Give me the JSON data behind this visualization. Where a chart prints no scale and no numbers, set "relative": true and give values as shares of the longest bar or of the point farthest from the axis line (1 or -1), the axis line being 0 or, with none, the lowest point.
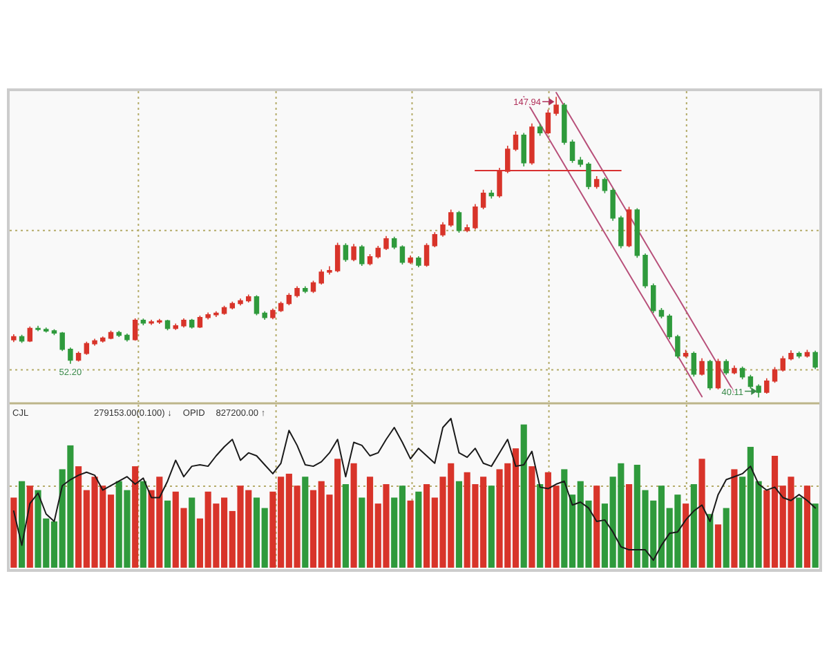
{
  "chart_data": [
    {
      "type": "candlestick",
      "categories": [
        null,
        null,
        null,
        null,
        null,
        null,
        null,
        null,
        null,
        null,
        null,
        null,
        null,
        null,
        null,
        null,
        null,
        null,
        null,
        null,
        null,
        null,
        null,
        null,
        null,
        null,
        null,
        null,
        null,
        null,
        null,
        null,
        null,
        null,
        null,
        null,
        null,
        null,
        null,
        null,
        null,
        null,
        null,
        null,
        null,
        null,
        null,
        null,
        null,
        null,
        null,
        null,
        null,
        null,
        null,
        null,
        null,
        null,
        null,
        null,
        null,
        null,
        null,
        null,
        null,
        null,
        null,
        null,
        null,
        null,
        null,
        null,
        null,
        null,
        null,
        null,
        null,
        null,
        null,
        null,
        null,
        null,
        null,
        null,
        null,
        null,
        null,
        null,
        null,
        null,
        null,
        null,
        null,
        null,
        null,
        null,
        null,
        null,
        null,
        null
      ],
      "ohlc": [
        [
          60.8,
          62.8,
          60.0,
          61.9
        ],
        [
          61.9,
          62.6,
          59.7,
          60.4
        ],
        [
          60.4,
          65.6,
          60.0,
          64.9
        ],
        [
          64.9,
          65.8,
          63.9,
          64.5
        ],
        [
          64.5,
          65.2,
          63.4,
          64.0
        ],
        [
          64.0,
          64.6,
          62.5,
          63.2
        ],
        [
          63.2,
          63.6,
          56.8,
          57.4
        ],
        [
          57.4,
          58.0,
          52.2,
          53.5
        ],
        [
          53.5,
          56.6,
          53.0,
          55.9
        ],
        [
          55.9,
          60.1,
          55.4,
          59.4
        ],
        [
          59.4,
          61.2,
          58.7,
          60.4
        ],
        [
          60.4,
          62.0,
          59.8,
          61.4
        ],
        [
          61.4,
          64.1,
          61.0,
          63.4
        ],
        [
          63.4,
          64.0,
          61.8,
          62.4
        ],
        [
          62.4,
          63.0,
          60.2,
          60.9
        ],
        [
          60.9,
          68.5,
          60.5,
          67.8
        ],
        [
          67.8,
          68.4,
          66.0,
          66.8
        ],
        [
          66.8,
          68.0,
          66.1,
          67.2
        ],
        [
          67.2,
          68.3,
          66.5,
          67.6
        ],
        [
          67.6,
          68.0,
          64.2,
          64.9
        ],
        [
          64.9,
          66.6,
          64.3,
          65.8
        ],
        [
          65.8,
          68.5,
          65.2,
          67.8
        ],
        [
          67.8,
          68.3,
          64.8,
          65.4
        ],
        [
          65.4,
          69.5,
          65.0,
          68.8
        ],
        [
          68.8,
          70.6,
          68.1,
          69.8
        ],
        [
          69.8,
          71.0,
          69.0,
          70.3
        ],
        [
          70.3,
          73.0,
          69.8,
          72.3
        ],
        [
          72.3,
          74.5,
          71.7,
          73.8
        ],
        [
          73.8,
          75.6,
          73.1,
          74.8
        ],
        [
          74.8,
          77.0,
          74.2,
          76.2
        ],
        [
          76.2,
          76.8,
          69.6,
          70.3
        ],
        [
          70.3,
          71.0,
          68.0,
          68.8
        ],
        [
          68.8,
          72.0,
          68.2,
          71.3
        ],
        [
          71.3,
          74.5,
          70.8,
          73.8
        ],
        [
          73.8,
          77.5,
          73.2,
          76.7
        ],
        [
          76.7,
          80.0,
          76.0,
          79.2
        ],
        [
          79.2,
          80.0,
          77.5,
          78.2
        ],
        [
          78.2,
          82.0,
          77.6,
          81.2
        ],
        [
          81.2,
          86.0,
          80.6,
          85.1
        ],
        [
          85.1,
          87.2,
          84.2,
          85.6
        ],
        [
          85.6,
          95.6,
          85.0,
          94.6
        ],
        [
          94.6,
          95.4,
          88.8,
          89.6
        ],
        [
          89.6,
          95.2,
          89.0,
          94.1
        ],
        [
          94.1,
          94.8,
          87.3,
          88.1
        ],
        [
          88.1,
          91.5,
          87.5,
          90.6
        ],
        [
          90.6,
          94.5,
          90.0,
          93.6
        ],
        [
          93.6,
          98.0,
          93.0,
          97.0
        ],
        [
          97.0,
          97.8,
          93.3,
          94.1
        ],
        [
          94.1,
          94.7,
          87.8,
          88.6
        ],
        [
          88.6,
          91.0,
          88.0,
          90.1
        ],
        [
          90.1,
          90.8,
          86.8,
          87.6
        ],
        [
          87.6,
          95.4,
          87.0,
          94.6
        ],
        [
          94.6,
          99.4,
          94.0,
          98.5
        ],
        [
          98.5,
          103.0,
          97.8,
          102.0
        ],
        [
          102.0,
          107.5,
          101.3,
          106.4
        ],
        [
          106.4,
          107.0,
          99.2,
          100.0
        ],
        [
          100.0,
          102.2,
          99.4,
          101.0
        ],
        [
          101.0,
          109.5,
          100.4,
          108.4
        ],
        [
          108.4,
          114.6,
          107.6,
          113.4
        ],
        [
          113.4,
          114.5,
          111.5,
          112.5
        ],
        [
          112.5,
          122.5,
          111.8,
          121.3
        ],
        [
          121.3,
          130.4,
          120.6,
          129.2
        ],
        [
          129.2,
          135.6,
          128.5,
          134.2
        ],
        [
          134.2,
          135.0,
          123.0,
          124.3
        ],
        [
          124.3,
          138.4,
          123.6,
          137.1
        ],
        [
          137.1,
          138.2,
          134.0,
          135.1
        ],
        [
          135.1,
          143.4,
          134.5,
          142.1
        ],
        [
          142.1,
          147.94,
          141.2,
          145.0
        ],
        [
          145.0,
          145.8,
          130.8,
          131.7
        ],
        [
          131.7,
          132.6,
          124.3,
          125.2
        ],
        [
          125.2,
          126.4,
          122.8,
          123.8
        ],
        [
          123.8,
          124.5,
          114.8,
          115.8
        ],
        [
          115.8,
          119.5,
          115.0,
          118.3
        ],
        [
          118.3,
          119.0,
          113.4,
          114.4
        ],
        [
          114.4,
          115.2,
          103.5,
          104.5
        ],
        [
          104.5,
          105.3,
          93.6,
          94.6
        ],
        [
          94.6,
          108.5,
          94.0,
          107.4
        ],
        [
          107.4,
          108.0,
          90.2,
          91.1
        ],
        [
          91.1,
          91.8,
          79.3,
          80.2
        ],
        [
          80.2,
          81.0,
          70.4,
          71.3
        ],
        [
          71.3,
          72.2,
          68.5,
          69.3
        ],
        [
          69.3,
          70.0,
          61.0,
          61.9
        ],
        [
          61.9,
          62.6,
          54.2,
          55.0
        ],
        [
          55.0,
          57.2,
          54.4,
          55.9
        ],
        [
          55.9,
          56.6,
          47.6,
          48.5
        ],
        [
          48.5,
          54.2,
          48.0,
          53.0
        ],
        [
          53.0,
          53.6,
          42.8,
          43.6
        ],
        [
          43.6,
          54.0,
          43.0,
          53.0
        ],
        [
          53.0,
          53.8,
          48.2,
          49.0
        ],
        [
          49.0,
          51.6,
          48.4,
          50.5
        ],
        [
          50.5,
          51.2,
          46.6,
          47.5
        ],
        [
          47.5,
          48.2,
          43.3,
          44.1
        ],
        [
          44.1,
          44.8,
          40.11,
          42.0
        ],
        [
          42.0,
          47.0,
          41.5,
          46.0
        ],
        [
          46.0,
          51.0,
          45.4,
          50.0
        ],
        [
          50.0,
          55.0,
          49.4,
          54.0
        ],
        [
          54.0,
          57.0,
          53.4,
          55.9
        ],
        [
          55.9,
          56.6,
          54.2,
          55.0
        ],
        [
          55.0,
          57.2,
          54.4,
          56.2
        ],
        [
          56.2,
          56.9,
          50.3,
          51.0
        ]
      ],
      "colors": [
        "#d8342a",
        "#2f9a3c",
        "#d8342a",
        "#2f9a3c",
        "#2f9a3c",
        "#2f9a3c",
        "#2f9a3c",
        "#2f9a3c",
        "#d8342a",
        "#d8342a",
        "#d8342a",
        "#d8342a",
        "#d8342a",
        "#2f9a3c",
        "#2f9a3c",
        "#d8342a",
        "#2f9a3c",
        "#d8342a",
        "#d8342a",
        "#2f9a3c",
        "#d8342a",
        "#d8342a",
        "#2f9a3c",
        "#d8342a",
        "#d8342a",
        "#d8342a",
        "#d8342a",
        "#d8342a",
        "#d8342a",
        "#d8342a",
        "#2f9a3c",
        "#2f9a3c",
        "#d8342a",
        "#d8342a",
        "#d8342a",
        "#d8342a",
        "#2f9a3c",
        "#d8342a",
        "#d8342a",
        "#d8342a",
        "#d8342a",
        "#2f9a3c",
        "#d8342a",
        "#2f9a3c",
        "#d8342a",
        "#d8342a",
        "#d8342a",
        "#2f9a3c",
        "#2f9a3c",
        "#d8342a",
        "#2f9a3c",
        "#d8342a",
        "#d8342a",
        "#d8342a",
        "#d8342a",
        "#2f9a3c",
        "#d8342a",
        "#d8342a",
        "#d8342a",
        "#2f9a3c",
        "#d8342a",
        "#d8342a",
        "#d8342a",
        "#2f9a3c",
        "#d8342a",
        "#2f9a3c",
        "#d8342a",
        "#d8342a",
        "#2f9a3c",
        "#2f9a3c",
        "#2f9a3c",
        "#2f9a3c",
        "#d8342a",
        "#2f9a3c",
        "#2f9a3c",
        "#2f9a3c",
        "#d8342a",
        "#2f9a3c",
        "#2f9a3c",
        "#2f9a3c",
        "#2f9a3c",
        "#2f9a3c",
        "#2f9a3c",
        "#d8342a",
        "#2f9a3c",
        "#d8342a",
        "#2f9a3c",
        "#d8342a",
        "#2f9a3c",
        "#d8342a",
        "#2f9a3c",
        "#2f9a3c",
        "#2f9a3c",
        "#d8342a",
        "#d8342a",
        "#d8342a",
        "#d8342a",
        "#2f9a3c",
        "#d8342a",
        "#2f9a3c"
      ],
      "ylim": [
        38.5,
        150
      ],
      "yticks": [
        50,
        100
      ],
      "tick_labels": false,
      "grid": true,
      "series": [
        {
          "type": "line",
          "color": "#b8507a",
          "values": [
            null,
            null,
            null,
            null,
            null,
            null,
            null,
            null,
            null,
            null,
            null,
            null,
            null,
            null,
            null,
            null,
            null,
            null,
            null,
            null,
            null,
            null,
            null,
            null,
            null,
            null,
            null,
            null,
            null,
            null,
            null,
            null,
            null,
            null,
            null,
            null,
            null,
            null,
            null,
            null,
            null,
            null,
            null,
            null,
            null,
            null,
            null,
            null,
            null,
            null,
            null,
            null,
            null,
            null,
            null,
            null,
            null,
            null,
            null,
            null,
            null,
            null,
            null,
            null,
            null,
            null,
            null,
            149.5,
            144.6,
            139.7,
            134.8,
            129.9,
            125.1,
            120.2,
            115.3,
            110.4,
            105.5,
            100.6,
            95.7,
            90.8,
            85.9,
            81.0,
            76.2,
            71.3,
            66.4,
            61.5,
            56.6,
            51.7,
            46.8,
            41.9,
            null,
            null,
            null,
            null,
            null,
            null,
            null,
            null,
            null,
            null
          ]
        },
        {
          "type": "line",
          "color": "#b8507a",
          "values": [
            null,
            null,
            null,
            null,
            null,
            null,
            null,
            null,
            null,
            null,
            null,
            null,
            null,
            null,
            null,
            null,
            null,
            null,
            null,
            null,
            null,
            null,
            null,
            null,
            null,
            null,
            null,
            null,
            null,
            null,
            null,
            null,
            null,
            null,
            null,
            null,
            null,
            null,
            null,
            null,
            null,
            null,
            null,
            null,
            null,
            null,
            null,
            null,
            null,
            null,
            null,
            null,
            null,
            null,
            null,
            null,
            null,
            null,
            null,
            null,
            null,
            null,
            null,
            148.0,
            143.1,
            138.2,
            133.4,
            128.5,
            123.6,
            118.7,
            113.8,
            108.9,
            104.0,
            99.1,
            94.2,
            89.3,
            84.4,
            79.5,
            74.7,
            69.8,
            64.9,
            60.0,
            55.1,
            50.2,
            45.3,
            40.4,
            null,
            null,
            null,
            null,
            null,
            null,
            null,
            null,
            null,
            null,
            null,
            null,
            null,
            null
          ]
        },
        {
          "type": "line",
          "color": "#d83030",
          "values": [
            null,
            null,
            null,
            null,
            null,
            null,
            null,
            null,
            null,
            null,
            null,
            null,
            null,
            null,
            null,
            null,
            null,
            null,
            null,
            null,
            null,
            null,
            null,
            null,
            null,
            null,
            null,
            null,
            null,
            null,
            null,
            null,
            null,
            null,
            null,
            null,
            null,
            null,
            null,
            null,
            null,
            null,
            null,
            null,
            null,
            null,
            null,
            null,
            null,
            null,
            null,
            null,
            null,
            null,
            null,
            null,
            null,
            121.5,
            121.5,
            121.5,
            121.5,
            121.5,
            121.5,
            121.5,
            121.5,
            121.5,
            121.5,
            121.5,
            121.5,
            121.5,
            121.5,
            121.5,
            121.5,
            121.5,
            121.5,
            121.5,
            null,
            null,
            null,
            null,
            null,
            null,
            null,
            null,
            null,
            null,
            null,
            null,
            null,
            null,
            null,
            null,
            null,
            null,
            null,
            null,
            null,
            null,
            null,
            null
          ]
        }
      ],
      "annotations": [
        {
          "text": "147.94",
          "y": 147.94
        },
        {
          "text": "52.20",
          "y": 52.2
        },
        {
          "text": "40.11",
          "y": 40.11
        }
      ]
    },
    {
      "type": "bar",
      "categories": [
        null,
        null,
        null,
        null,
        null,
        null,
        null,
        null,
        null,
        null,
        null,
        null,
        null,
        null,
        null,
        null,
        null,
        null,
        null,
        null,
        null,
        null,
        null,
        null,
        null,
        null,
        null,
        null,
        null,
        null,
        null,
        null,
        null,
        null,
        null,
        null,
        null,
        null,
        null,
        null,
        null,
        null,
        null,
        null,
        null,
        null,
        null,
        null,
        null,
        null,
        null,
        null,
        null,
        null,
        null,
        null,
        null,
        null,
        null,
        null,
        null,
        null,
        null,
        null,
        null,
        null,
        null,
        null,
        null,
        null,
        null,
        null,
        null,
        null,
        null,
        null,
        null,
        null,
        null,
        null,
        null,
        null,
        null,
        null,
        null,
        null,
        null,
        null,
        null,
        null,
        null,
        null,
        null,
        null,
        null,
        null,
        null,
        null,
        null,
        null
      ],
      "relative": true,
      "grid": true,
      "series": [
        {
          "type": "bar",
          "colors": [
            "#d8342a",
            "#2f9a3c",
            "#d8342a",
            "#2f9a3c",
            "#2f9a3c",
            "#2f9a3c",
            "#2f9a3c",
            "#2f9a3c",
            "#d8342a",
            "#d8342a",
            "#d8342a",
            "#d8342a",
            "#d8342a",
            "#2f9a3c",
            "#2f9a3c",
            "#d8342a",
            "#2f9a3c",
            "#d8342a",
            "#d8342a",
            "#2f9a3c",
            "#d8342a",
            "#d8342a",
            "#2f9a3c",
            "#d8342a",
            "#d8342a",
            "#d8342a",
            "#d8342a",
            "#d8342a",
            "#d8342a",
            "#d8342a",
            "#2f9a3c",
            "#2f9a3c",
            "#d8342a",
            "#d8342a",
            "#d8342a",
            "#d8342a",
            "#2f9a3c",
            "#d8342a",
            "#d8342a",
            "#d8342a",
            "#d8342a",
            "#2f9a3c",
            "#d8342a",
            "#2f9a3c",
            "#d8342a",
            "#d8342a",
            "#d8342a",
            "#2f9a3c",
            "#2f9a3c",
            "#d8342a",
            "#2f9a3c",
            "#d8342a",
            "#d8342a",
            "#d8342a",
            "#d8342a",
            "#2f9a3c",
            "#d8342a",
            "#d8342a",
            "#d8342a",
            "#2f9a3c",
            "#d8342a",
            "#d8342a",
            "#d8342a",
            "#2f9a3c",
            "#d8342a",
            "#2f9a3c",
            "#d8342a",
            "#d8342a",
            "#2f9a3c",
            "#2f9a3c",
            "#2f9a3c",
            "#2f9a3c",
            "#d8342a",
            "#2f9a3c",
            "#2f9a3c",
            "#2f9a3c",
            "#d8342a",
            "#2f9a3c",
            "#2f9a3c",
            "#2f9a3c",
            "#2f9a3c",
            "#2f9a3c",
            "#2f9a3c",
            "#d8342a",
            "#2f9a3c",
            "#d8342a",
            "#2f9a3c",
            "#d8342a",
            "#2f9a3c",
            "#d8342a",
            "#2f9a3c",
            "#2f9a3c",
            "#2f9a3c",
            "#d8342a",
            "#d8342a",
            "#d8342a",
            "#d8342a",
            "#2f9a3c",
            "#d8342a",
            "#2f9a3c"
          ],
          "values": [
            0.47,
            0.58,
            0.55,
            0.52,
            0.33,
            0.31,
            0.66,
            0.82,
            0.68,
            0.52,
            0.61,
            0.55,
            0.49,
            0.58,
            0.52,
            0.68,
            0.58,
            0.52,
            0.61,
            0.45,
            0.51,
            0.4,
            0.47,
            0.33,
            0.51,
            0.43,
            0.47,
            0.38,
            0.55,
            0.52,
            0.47,
            0.4,
            0.51,
            0.61,
            0.63,
            0.55,
            0.61,
            0.52,
            0.58,
            0.49,
            0.73,
            0.56,
            0.7,
            0.47,
            0.61,
            0.43,
            0.56,
            0.47,
            0.55,
            0.45,
            0.51,
            0.56,
            0.47,
            0.61,
            0.7,
            0.58,
            0.64,
            0.56,
            0.61,
            0.55,
            0.66,
            0.7,
            0.8,
            0.96,
            0.68,
            0.56,
            0.64,
            0.55,
            0.66,
            0.49,
            0.58,
            0.45,
            0.55,
            0.43,
            0.61,
            0.7,
            0.56,
            0.69,
            0.52,
            0.45,
            0.55,
            0.4,
            0.49,
            0.43,
            0.56,
            0.73,
            0.36,
            0.29,
            0.4,
            0.66,
            0.61,
            0.81,
            0.58,
            0.52,
            0.75,
            0.55,
            0.61,
            0.47,
            0.55,
            0.43
          ]
        },
        {
          "type": "line",
          "color": "#1a1a1a",
          "values": [
            0.38,
            0.15,
            0.43,
            0.5,
            0.36,
            0.31,
            0.55,
            0.59,
            0.62,
            0.64,
            0.62,
            0.52,
            0.55,
            0.58,
            0.61,
            0.56,
            0.6,
            0.47,
            0.47,
            0.58,
            0.72,
            0.61,
            0.68,
            0.69,
            0.68,
            0.75,
            0.81,
            0.86,
            0.72,
            0.77,
            0.75,
            0.69,
            0.63,
            0.7,
            0.92,
            0.82,
            0.69,
            0.68,
            0.71,
            0.77,
            0.86,
            0.61,
            0.84,
            0.82,
            0.75,
            0.77,
            0.86,
            0.94,
            0.84,
            0.73,
            0.8,
            0.75,
            0.7,
            0.94,
            1.0,
            0.77,
            0.74,
            0.8,
            0.7,
            0.68,
            0.77,
            0.86,
            0.68,
            0.69,
            0.78,
            0.54,
            0.53,
            0.56,
            0.58,
            0.42,
            0.44,
            0.4,
            0.31,
            0.32,
            0.24,
            0.14,
            0.12,
            0.12,
            0.12,
            0.05,
            0.15,
            0.23,
            0.24,
            0.32,
            0.38,
            0.42,
            0.31,
            0.49,
            0.59,
            0.61,
            0.63,
            0.68,
            0.56,
            0.52,
            0.54,
            0.47,
            0.45,
            0.49,
            0.45,
            0.4
          ]
        }
      ],
      "annotations": [
        "CJL",
        "279153.00(0.100) ↓",
        "OPID",
        "827200.00 ↑"
      ]
    }
  ]
}
